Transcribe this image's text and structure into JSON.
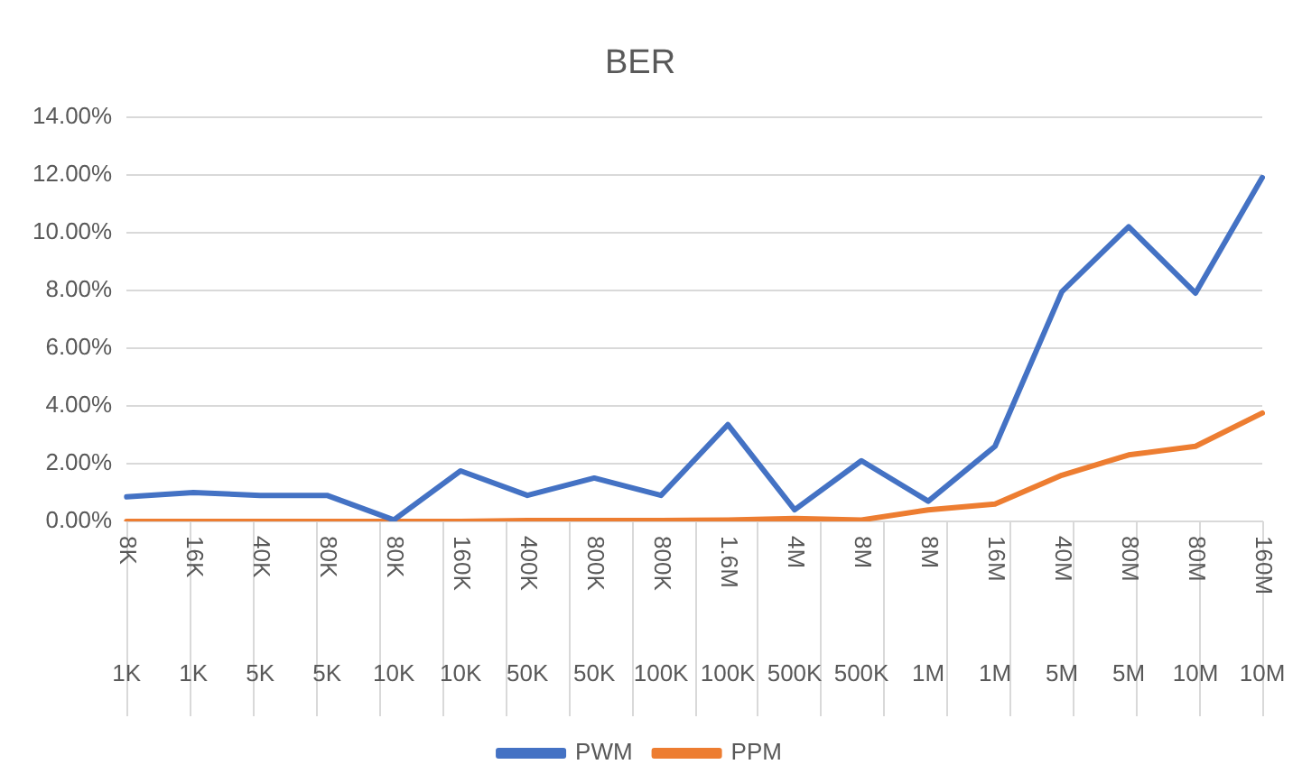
{
  "chart_data": {
    "type": "line",
    "title": "BER",
    "categories": [
      "8K\n1K",
      "16K\n1K",
      "40K\n5K",
      "80K\n5K",
      "80K\n10K",
      "160K\n10K",
      "400K\n50K",
      "800K\n50K",
      "800K\n100K",
      "1.6M\n100K",
      "4M\n500K",
      "8M\n500K",
      "8M\n1M",
      "16M\n1M",
      "40M\n5M",
      "80M\n5M",
      "80M\n10M",
      "160M\n10M"
    ],
    "series": [
      {
        "name": "PWM",
        "color": "#4472c4",
        "values": [
          0.85,
          1.0,
          0.9,
          0.9,
          0.05,
          1.75,
          0.9,
          1.5,
          0.9,
          3.35,
          0.4,
          2.1,
          0.7,
          2.6,
          7.95,
          10.2,
          7.9,
          11.9
        ]
      },
      {
        "name": "PPM",
        "color": "#ed7d31",
        "values": [
          0,
          0,
          0,
          0,
          0,
          0,
          0.03,
          0.03,
          0.03,
          0.05,
          0.1,
          0.05,
          0.4,
          0.6,
          1.6,
          2.3,
          2.6,
          3.75
        ]
      }
    ],
    "ylim": [
      0,
      14
    ],
    "yticks": [
      {
        "value": 0,
        "label": "0.00%"
      },
      {
        "value": 2,
        "label": "2.00%"
      },
      {
        "value": 4,
        "label": "4.00%"
      },
      {
        "value": 6,
        "label": "6.00%"
      },
      {
        "value": 8,
        "label": "8.00%"
      },
      {
        "value": 10,
        "label": "10.00%"
      },
      {
        "value": 12,
        "label": "12.00%"
      },
      {
        "value": 14,
        "label": "14.00%"
      }
    ],
    "grid": "y",
    "legend": "bottom",
    "marker": "none",
    "line_style": "solid"
  }
}
